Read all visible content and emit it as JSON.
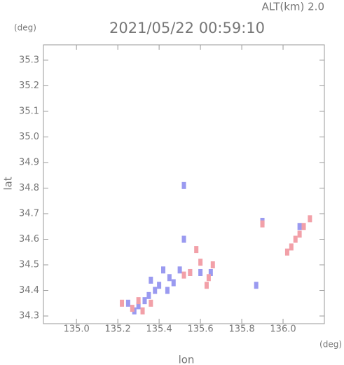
{
  "chart_data": {
    "type": "scatter",
    "title": "2021/05/22 00:59:10",
    "subtitle": "ALT(km) 2.0",
    "y_unit": "(deg)",
    "x_unit": "(deg)",
    "x_label": "lon",
    "y_label": "lat",
    "xlim": [
      134.84,
      136.2
    ],
    "ylim": [
      34.27,
      35.36
    ],
    "xticks": [
      {
        "value": 135,
        "label": "135.0"
      },
      135.2,
      135.4,
      135.6,
      135.8,
      {
        "value": 136,
        "label": "136.0"
      }
    ],
    "yticks": [
      34.3,
      34.4,
      34.5,
      34.6,
      34.7,
      34.8,
      34.9,
      {
        "value": 35,
        "label": "35.0"
      },
      35.1,
      35.2,
      35.3
    ],
    "series": [
      {
        "color": "#9a9af0",
        "x": [
          135.25,
          135.3,
          135.35,
          135.4,
          135.45,
          135.5,
          135.55,
          135.42,
          135.38,
          135.33,
          135.6,
          135.65,
          135.9,
          135.87,
          136.08,
          135.52,
          135.52,
          135.47,
          135.28,
          135.36,
          135.44
        ],
        "y": [
          34.35,
          34.34,
          34.38,
          34.42,
          34.45,
          34.48,
          34.47,
          34.48,
          34.4,
          34.36,
          34.47,
          34.47,
          34.67,
          34.42,
          34.65,
          34.81,
          34.6,
          34.43,
          34.32,
          34.44,
          34.4
        ]
      },
      {
        "color": "#f2a0a8",
        "x": [
          135.22,
          135.27,
          135.32,
          135.36,
          135.63,
          135.64,
          135.6,
          135.58,
          135.52,
          136.02,
          136.06,
          136.1,
          136.13,
          136.04,
          135.9,
          135.55,
          135.3,
          136.08,
          135.66
        ],
        "y": [
          34.35,
          34.33,
          34.32,
          34.35,
          34.42,
          34.45,
          34.51,
          34.56,
          34.46,
          34.55,
          34.6,
          34.65,
          34.68,
          34.57,
          34.66,
          34.47,
          34.36,
          34.62,
          34.5
        ]
      }
    ]
  }
}
